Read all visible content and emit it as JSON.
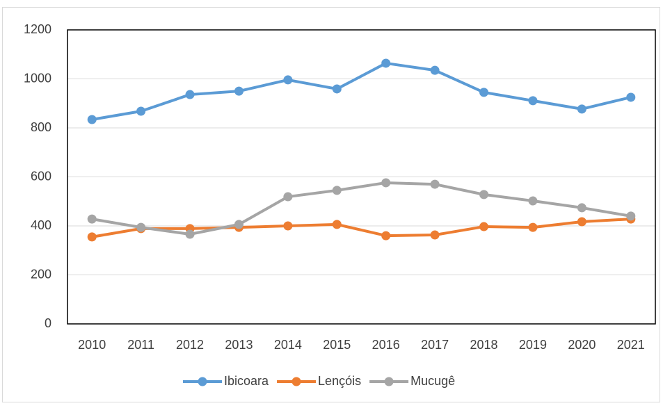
{
  "chart_data": {
    "type": "line",
    "categories": [
      "2010",
      "2011",
      "2012",
      "2013",
      "2014",
      "2015",
      "2016",
      "2017",
      "2018",
      "2019",
      "2020",
      "2021"
    ],
    "series": [
      {
        "name": "Ibicoara",
        "color": "#5b9bd5",
        "values": [
          834,
          868,
          936,
          950,
          996,
          959,
          1064,
          1035,
          945,
          911,
          877,
          925
        ]
      },
      {
        "name": "Lençóis",
        "color": "#ed7d31",
        "values": [
          355,
          389,
          389,
          394,
          400,
          406,
          360,
          363,
          397,
          394,
          417,
          428
        ]
      },
      {
        "name": "Mucugê",
        "color": "#a5a5a5",
        "values": [
          428,
          394,
          366,
          406,
          519,
          545,
          576,
          570,
          528,
          502,
          474,
          440
        ]
      }
    ],
    "ylim": [
      0,
      1200
    ],
    "yticks": [
      0,
      200,
      400,
      600,
      800,
      1000,
      1200
    ],
    "grid": true,
    "legend": "bottom"
  }
}
